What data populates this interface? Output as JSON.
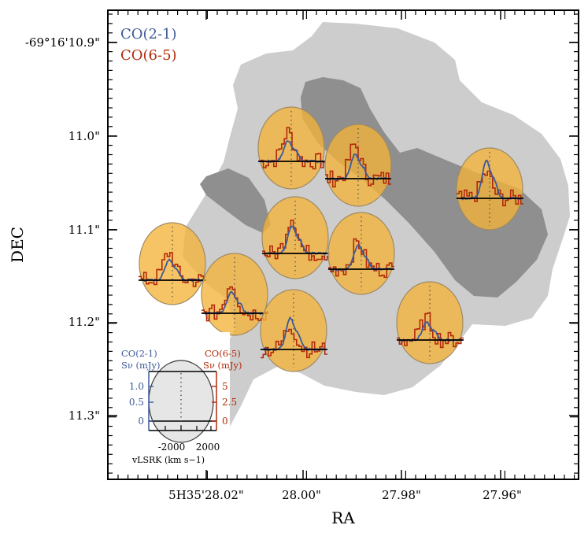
{
  "chart_data": {
    "type": "spectral-map",
    "xlabel": "RA",
    "ylabel": "DEC",
    "x_ticks": [
      "5H35'28.02\"",
      "28.00\"",
      "27.98\"",
      "27.96\""
    ],
    "y_ticks": [
      "-69°16'10.9\"",
      "11.0\"",
      "11.1\"",
      "11.2\"",
      "11.3\""
    ],
    "legend": [
      {
        "name": "CO(2-1)",
        "color": "#3d5a98"
      },
      {
        "name": "CO(6-5)",
        "color": "#b22a0a"
      }
    ],
    "contour_colors": {
      "outer": "#cdcdcd",
      "inner": "#8f8f8f"
    },
    "beam_color": "#f5b43a",
    "inset": {
      "left_label_line1": "CO(2-1)",
      "left_label_line2": "Sν (mJy)",
      "right_label_line1": "CO(6-5)",
      "right_label_line2": "Sν (mJy)",
      "left_ticks": [
        "1.0",
        "0.5",
        "0"
      ],
      "right_ticks": [
        "5",
        "2.5",
        "0"
      ],
      "x_ticks": [
        "-2000",
        "2000"
      ],
      "x_label": "vLSRK (km s−1)"
    },
    "spectra": [
      {
        "ra_offset": 1.0,
        "dec_offset": 11.02,
        "co21_peak": 0.6,
        "co65_peak": 4.2
      },
      {
        "ra_offset": 0.99,
        "dec_offset": 11.03,
        "co21_peak": 0.7,
        "co65_peak": 4.8
      },
      {
        "ra_offset": 0.96,
        "dec_offset": 11.04,
        "co21_peak": 1.1,
        "co65_peak": 3.6
      },
      {
        "ra_offset": 1.0,
        "dec_offset": 11.11,
        "co21_peak": 0.6,
        "co65_peak": 4.0
      },
      {
        "ra_offset": 0.99,
        "dec_offset": 11.11,
        "co21_peak": 0.8,
        "co65_peak": 5.2
      },
      {
        "ra_offset": 1.03,
        "dec_offset": 11.13,
        "co21_peak": 0.7,
        "co65_peak": 3.8
      },
      {
        "ra_offset": 1.02,
        "dec_offset": 11.16,
        "co21_peak": 0.6,
        "co65_peak": 4.4
      },
      {
        "ra_offset": 1.0,
        "dec_offset": 11.21,
        "co21_peak": 0.9,
        "co65_peak": 3.4
      },
      {
        "ra_offset": 0.97,
        "dec_offset": 11.2,
        "co21_peak": 0.5,
        "co65_peak": 3.0
      }
    ]
  }
}
